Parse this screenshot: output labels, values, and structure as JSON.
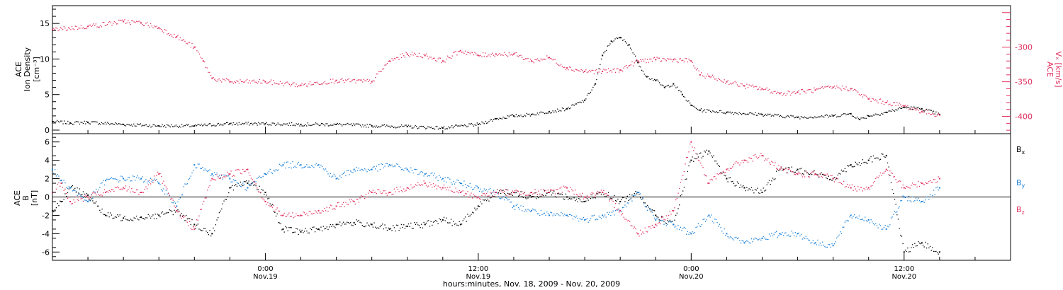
{
  "colors": {
    "density": "#000000",
    "vx": "#e0305e",
    "bx": "#000000",
    "by": "#1a80d8",
    "bz": "#e0305e",
    "axis": "#000000"
  },
  "chart_data": [
    {
      "type": "scatter",
      "title": "",
      "xlabel": "",
      "x_unit": "hours since Nov. 18 00:00 UT",
      "xlim": [
        12,
        66
      ],
      "y_left": {
        "label_lines": [
          "ACE",
          "Ion Density",
          "[cm⁻³]"
        ],
        "ticks": [
          0,
          5,
          10,
          15
        ],
        "ylim": [
          -0.5,
          17.5
        ]
      },
      "y_right": {
        "label_lines": [
          "ACE",
          "Vₓ [km/s]"
        ],
        "ticks": [
          -300,
          -350,
          -400
        ],
        "ylim": [
          -425,
          -240
        ]
      },
      "series": [
        {
          "name": "",
          "axis": "left",
          "color_key": "density",
          "points": [
            [
              12,
              1.2
            ],
            [
              13,
              1.0
            ],
            [
              14,
              1.1
            ],
            [
              16,
              0.8
            ],
            [
              18,
              0.6
            ],
            [
              20,
              0.6
            ],
            [
              22,
              0.9
            ],
            [
              24,
              0.9
            ],
            [
              26,
              0.8
            ],
            [
              28,
              0.8
            ],
            [
              30,
              0.6
            ],
            [
              32,
              0.5
            ],
            [
              34,
              0.3
            ],
            [
              36,
              0.8
            ],
            [
              37,
              1.6
            ],
            [
              38,
              2.0
            ],
            [
              39,
              2.2
            ],
            [
              40,
              2.6
            ],
            [
              41,
              3.0
            ],
            [
              42,
              4.2
            ],
            [
              42.6,
              6.5
            ],
            [
              43,
              10.5
            ],
            [
              43.5,
              12.5
            ],
            [
              44,
              13.0
            ],
            [
              44.5,
              12.0
            ],
            [
              45,
              9.5
            ],
            [
              45.5,
              7.5
            ],
            [
              46,
              7.0
            ],
            [
              46.5,
              6.0
            ],
            [
              47,
              6.5
            ],
            [
              47.5,
              5.0
            ],
            [
              48,
              3.5
            ],
            [
              48.5,
              2.8
            ],
            [
              50,
              2.5
            ],
            [
              52,
              2.2
            ],
            [
              54,
              1.8
            ],
            [
              56,
              2.0
            ],
            [
              57,
              2.3
            ],
            [
              57.5,
              1.5
            ],
            [
              58,
              2.0
            ],
            [
              59,
              2.5
            ],
            [
              60,
              3.2
            ],
            [
              61,
              3.0
            ],
            [
              62,
              2.2
            ]
          ]
        },
        {
          "name": "",
          "axis": "right",
          "color_key": "vx",
          "points": [
            [
              12,
              -275
            ],
            [
              14,
              -270
            ],
            [
              16,
              -263
            ],
            [
              17,
              -265
            ],
            [
              18,
              -272
            ],
            [
              19,
              -285
            ],
            [
              20,
              -300
            ],
            [
              20.5,
              -320
            ],
            [
              21,
              -345
            ],
            [
              22,
              -350
            ],
            [
              24,
              -350
            ],
            [
              26,
              -355
            ],
            [
              28,
              -348
            ],
            [
              30,
              -350
            ],
            [
              31,
              -320
            ],
            [
              32,
              -310
            ],
            [
              33,
              -312
            ],
            [
              34,
              -320
            ],
            [
              35,
              -305
            ],
            [
              36,
              -312
            ],
            [
              37,
              -310
            ],
            [
              38,
              -310
            ],
            [
              39,
              -320
            ],
            [
              40,
              -315
            ],
            [
              41,
              -330
            ],
            [
              42,
              -335
            ],
            [
              43,
              -335
            ],
            [
              44,
              -333
            ],
            [
              45,
              -320
            ],
            [
              46,
              -318
            ],
            [
              47,
              -318
            ],
            [
              48,
              -320
            ],
            [
              48.5,
              -340
            ],
            [
              49,
              -342
            ],
            [
              50,
              -350
            ],
            [
              51,
              -356
            ],
            [
              52,
              -360
            ],
            [
              53,
              -367
            ],
            [
              54,
              -365
            ],
            [
              55,
              -362
            ],
            [
              56,
              -358
            ],
            [
              57,
              -360
            ],
            [
              58,
              -375
            ],
            [
              59,
              -380
            ],
            [
              60,
              -385
            ],
            [
              61,
              -393
            ],
            [
              62,
              -398
            ]
          ]
        }
      ]
    },
    {
      "type": "scatter",
      "title": "",
      "xlabel": "hours:minutes, Nov. 18, 2009 - Nov. 20, 2009",
      "x_unit": "hours since Nov. 18 00:00 UT",
      "xlim": [
        12,
        66
      ],
      "x_ticks": [
        {
          "x": 24,
          "time": "0:00",
          "date": "Nov.19"
        },
        {
          "x": 36,
          "time": "12:00",
          "date": "Nov.19"
        },
        {
          "x": 48,
          "time": "0:00",
          "date": "Nov.20"
        },
        {
          "x": 60,
          "time": "12:00",
          "date": "Nov.20"
        }
      ],
      "y_left": {
        "label_lines": [
          "ACE",
          "B",
          "[nT]"
        ],
        "ticks": [
          -6,
          -4,
          -2,
          0,
          2,
          4,
          6
        ],
        "ylim": [
          -6.9,
          6.9
        ]
      },
      "zero_line": true,
      "legend_position": "right",
      "series": [
        {
          "name": "Bx",
          "color_key": "bx",
          "points": [
            [
              12,
              -1.5
            ],
            [
              12.5,
              -0.5
            ],
            [
              13,
              1.0
            ],
            [
              14,
              0.2
            ],
            [
              15,
              -2.0
            ],
            [
              16,
              -2.3
            ],
            [
              17,
              -2.2
            ],
            [
              18,
              -2.0
            ],
            [
              19,
              -1.5
            ],
            [
              20,
              -3.0
            ],
            [
              21,
              -4.0
            ],
            [
              22,
              1.0
            ],
            [
              23,
              1.5
            ],
            [
              24,
              0.5
            ],
            [
              25,
              -3.5
            ],
            [
              26,
              -3.8
            ],
            [
              27,
              -3.5
            ],
            [
              28,
              -3.0
            ],
            [
              29,
              -2.8
            ],
            [
              30,
              -3.0
            ],
            [
              31,
              -3.5
            ],
            [
              32,
              -3.2
            ],
            [
              33,
              -3.0
            ],
            [
              34,
              -2.5
            ],
            [
              35,
              -3.0
            ],
            [
              36,
              -1.0
            ],
            [
              37,
              0.5
            ],
            [
              38,
              0.5
            ],
            [
              39,
              0.0
            ],
            [
              40,
              0.5
            ],
            [
              41,
              0.0
            ],
            [
              42,
              -0.5
            ],
            [
              43,
              0.5
            ],
            [
              44,
              -0.5
            ],
            [
              45,
              0.5
            ],
            [
              46,
              -2.0
            ],
            [
              47,
              -3.0
            ],
            [
              48,
              4.0
            ],
            [
              49,
              5.0
            ],
            [
              50,
              2.0
            ],
            [
              51,
              1.0
            ],
            [
              52,
              0.5
            ],
            [
              53,
              3.0
            ],
            [
              54,
              3.0
            ],
            [
              55,
              2.5
            ],
            [
              56,
              2.0
            ],
            [
              57,
              3.5
            ],
            [
              58,
              4.0
            ],
            [
              59,
              4.5
            ],
            [
              60,
              -6.0
            ],
            [
              61,
              -5.0
            ],
            [
              62,
              -6.0
            ]
          ]
        },
        {
          "name": "By",
          "color_key": "by",
          "points": [
            [
              12,
              3.0
            ],
            [
              12.5,
              1.8
            ],
            [
              13,
              1.0
            ],
            [
              14,
              -0.5
            ],
            [
              15,
              1.8
            ],
            [
              16,
              2.0
            ],
            [
              17,
              2.0
            ],
            [
              18,
              1.5
            ],
            [
              19,
              -1.0
            ],
            [
              20,
              3.5
            ],
            [
              21,
              2.5
            ],
            [
              22,
              2.0
            ],
            [
              23,
              1.0
            ],
            [
              24,
              2.5
            ],
            [
              25,
              3.5
            ],
            [
              26,
              3.5
            ],
            [
              27,
              3.5
            ],
            [
              28,
              2.0
            ],
            [
              29,
              3.0
            ],
            [
              30,
              3.0
            ],
            [
              31,
              3.5
            ],
            [
              32,
              3.0
            ],
            [
              33,
              2.5
            ],
            [
              34,
              2.0
            ],
            [
              35,
              1.5
            ],
            [
              36,
              1.0
            ],
            [
              37,
              0.5
            ],
            [
              38,
              -1.0
            ],
            [
              39,
              -1.5
            ],
            [
              40,
              -2.0
            ],
            [
              41,
              -2.0
            ],
            [
              42,
              -2.5
            ],
            [
              43,
              -2.0
            ],
            [
              44,
              -1.5
            ],
            [
              45,
              0.5
            ],
            [
              46,
              -2.5
            ],
            [
              47,
              -3.0
            ],
            [
              48,
              -4.0
            ],
            [
              49,
              -2.0
            ],
            [
              50,
              -4.0
            ],
            [
              51,
              -5.0
            ],
            [
              52,
              -4.5
            ],
            [
              53,
              -4.0
            ],
            [
              54,
              -4.0
            ],
            [
              55,
              -5.0
            ],
            [
              56,
              -5.3
            ],
            [
              57,
              -2.0
            ],
            [
              58,
              -2.5
            ],
            [
              59,
              -3.5
            ],
            [
              60,
              0.0
            ],
            [
              61,
              -0.5
            ],
            [
              62,
              1.0
            ]
          ]
        },
        {
          "name": "Bz",
          "color_key": "bz",
          "points": [
            [
              12,
              0.5
            ],
            [
              12.5,
              1.5
            ],
            [
              13,
              -0.5
            ],
            [
              14,
              0.0
            ],
            [
              15,
              0.5
            ],
            [
              16,
              1.0
            ],
            [
              17,
              0.5
            ],
            [
              18,
              2.5
            ],
            [
              19,
              -1.5
            ],
            [
              20,
              -3.5
            ],
            [
              21,
              2.0
            ],
            [
              22,
              2.5
            ],
            [
              23,
              3.0
            ],
            [
              24,
              -0.5
            ],
            [
              25,
              -2.0
            ],
            [
              26,
              -2.0
            ],
            [
              27,
              -1.5
            ],
            [
              28,
              -1.0
            ],
            [
              29,
              -0.5
            ],
            [
              30,
              0.5
            ],
            [
              31,
              0.5
            ],
            [
              32,
              1.0
            ],
            [
              33,
              1.5
            ],
            [
              34,
              1.0
            ],
            [
              35,
              0.5
            ],
            [
              36,
              0.0
            ],
            [
              37,
              0.5
            ],
            [
              38,
              0.5
            ],
            [
              39,
              0.5
            ],
            [
              40,
              0.5
            ],
            [
              41,
              1.0
            ],
            [
              42,
              0.0
            ],
            [
              43,
              0.5
            ],
            [
              44,
              -1.5
            ],
            [
              45,
              -4.0
            ],
            [
              46,
              -3.0
            ],
            [
              47,
              -1.5
            ],
            [
              48,
              6.0
            ],
            [
              49,
              1.5
            ],
            [
              50,
              3.0
            ],
            [
              51,
              4.0
            ],
            [
              52,
              4.5
            ],
            [
              53,
              3.0
            ],
            [
              54,
              2.5
            ],
            [
              55,
              2.5
            ],
            [
              56,
              2.0
            ],
            [
              57,
              1.0
            ],
            [
              58,
              1.0
            ],
            [
              59,
              3.0
            ],
            [
              60,
              1.0
            ],
            [
              61,
              1.5
            ],
            [
              62,
              2.0
            ]
          ]
        }
      ]
    }
  ]
}
